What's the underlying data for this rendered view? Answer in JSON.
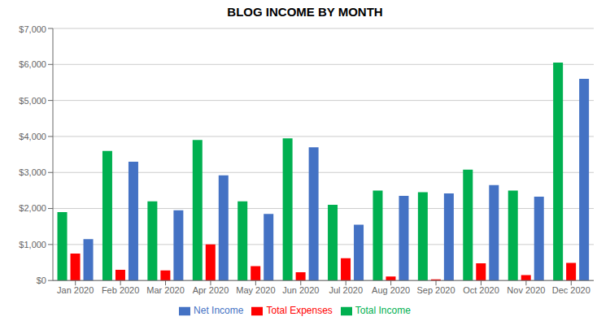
{
  "chart_data": {
    "type": "bar",
    "title": "BLOG INCOME BY MONTH",
    "categories": [
      "Jan 2020",
      "Feb 2020",
      "Mar 2020",
      "Apr 2020",
      "May 2020",
      "Jun 2020",
      "Jul 2020",
      "Aug 2020",
      "Sep 2020",
      "Oct 2020",
      "Nov 2020",
      "Dec 2020"
    ],
    "series": [
      {
        "name": "Total Income",
        "color": "#00b050",
        "values": [
          1900,
          3600,
          2200,
          3900,
          2200,
          3950,
          2100,
          2500,
          2450,
          3080,
          2500,
          6050
        ]
      },
      {
        "name": "Total Expenses",
        "color": "#ff0000",
        "values": [
          750,
          300,
          280,
          1000,
          400,
          230,
          620,
          110,
          30,
          480,
          150,
          490
        ]
      },
      {
        "name": "Net Income",
        "color": "#4472c4",
        "values": [
          1150,
          3300,
          1950,
          2920,
          1850,
          3700,
          1550,
          2350,
          2420,
          2650,
          2330,
          5600
        ]
      }
    ],
    "ylim": [
      0,
      7000
    ],
    "yticks": [
      {
        "value": 0,
        "label": "$0"
      },
      {
        "value": 1000,
        "label": "$1,000"
      },
      {
        "value": 2000,
        "label": "$2,000"
      },
      {
        "value": 3000,
        "label": "$3,000"
      },
      {
        "value": 4000,
        "label": "$4,000"
      },
      {
        "value": 5000,
        "label": "$5,000"
      },
      {
        "value": 6000,
        "label": "$6,000"
      },
      {
        "value": 7000,
        "label": "$7,000"
      }
    ],
    "grid": true,
    "legend": "bottom"
  }
}
